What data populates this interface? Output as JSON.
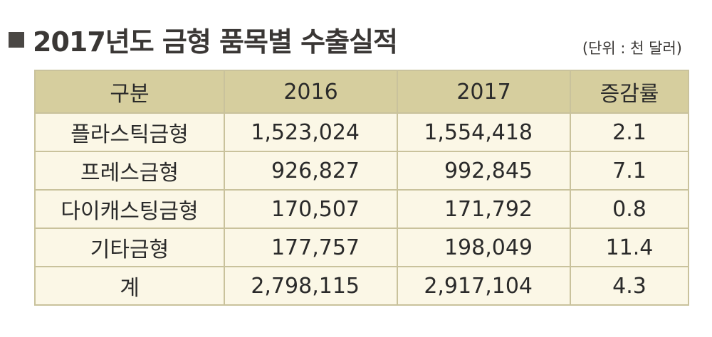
{
  "title": "2017년도 금형 품목별 수출실적",
  "unit": "(단위 : 천 달러)",
  "table": {
    "headers": [
      "구분",
      "2016",
      "2017",
      "증감률"
    ],
    "rows": [
      {
        "category": "플라스틱금형",
        "y2016": "1,523,024",
        "y2017": "1,554,418",
        "rate": "2.1"
      },
      {
        "category": "프레스금형",
        "y2016": "926,827",
        "y2017": "992,845",
        "rate": "7.1"
      },
      {
        "category": "다이캐스팅금형",
        "y2016": "170,507",
        "y2017": "171,792",
        "rate": "0.8"
      },
      {
        "category": "기타금형",
        "y2016": "177,757",
        "y2017": "198,049",
        "rate": "11.4"
      },
      {
        "category": "계",
        "y2016": "2,798,115",
        "y2017": "2,917,104",
        "rate": "4.3"
      }
    ]
  },
  "colors": {
    "header_bg": "#d6ce9e",
    "row_bg": "#fbf7e6",
    "border": "#c9c29c"
  }
}
